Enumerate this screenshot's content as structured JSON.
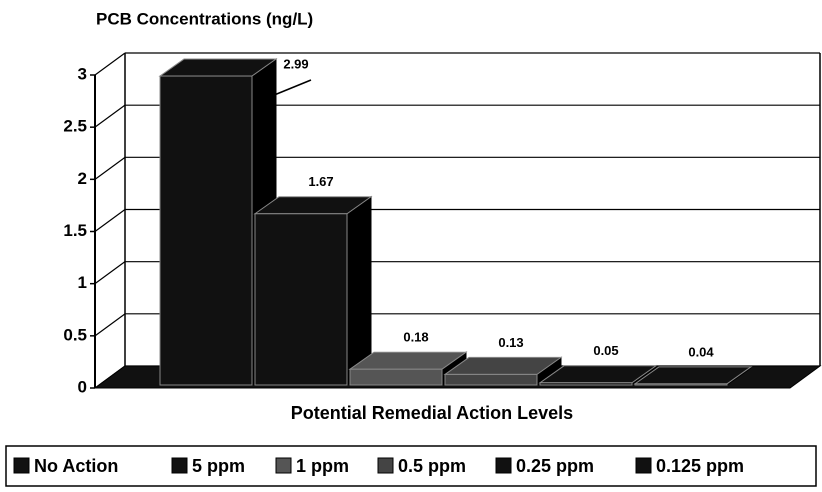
{
  "chart_data": {
    "type": "bar",
    "title": "PCB Concentrations (ng/L)",
    "x_label": "Potential Remedial Action Levels",
    "series": [
      {
        "name": "No Action",
        "color": "#111111",
        "values": [
          2.99
        ]
      },
      {
        "name": "5 ppm",
        "color": "#111111",
        "values": [
          1.67
        ]
      },
      {
        "name": "1 ppm",
        "color": "#555555",
        "values": [
          0.18
        ]
      },
      {
        "name": "0.5 ppm",
        "color": "#444444",
        "values": [
          0.13
        ]
      },
      {
        "name": "0.25 ppm",
        "color": "#111111",
        "values": [
          0.05
        ]
      },
      {
        "name": "0.125 ppm",
        "color": "#111111",
        "values": [
          0.04
        ]
      }
    ],
    "ylim": [
      0,
      3
    ],
    "yticks": [
      0,
      0.5,
      1,
      1.5,
      2,
      2.5,
      3
    ],
    "grid": true,
    "legend": "bottom"
  }
}
